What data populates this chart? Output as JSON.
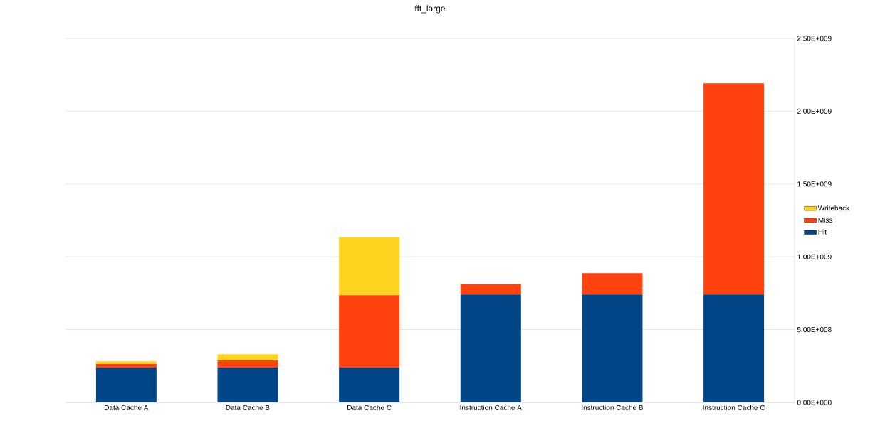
{
  "chart_data": {
    "type": "bar",
    "title": "fft_large",
    "stacked": true,
    "categories": [
      "Data Cache A",
      "Data Cache B",
      "Data Cache C",
      "Instruction Cache A",
      "Instruction Cache B",
      "Instruction Cache C"
    ],
    "series": [
      {
        "name": "Hit",
        "color": "#004586",
        "values": [
          239000000,
          239000000,
          239000000,
          741000000,
          741000000,
          741000000
        ]
      },
      {
        "name": "Miss",
        "color": "#ff420e",
        "values": [
          25000000,
          49000000,
          497000000,
          71000000,
          146000000,
          1450000000
        ]
      },
      {
        "name": "Writeback",
        "color": "#ffd320",
        "values": [
          18000000,
          43000000,
          399000000,
          0,
          0,
          0
        ]
      }
    ],
    "ylim": [
      0,
      2500000000
    ],
    "yticks": [
      {
        "value": 0,
        "label": "0.00E+000"
      },
      {
        "value": 500000000,
        "label": "5.00E+008"
      },
      {
        "value": 1000000000,
        "label": "1.00E+009"
      },
      {
        "value": 1500000000,
        "label": "1.50E+009"
      },
      {
        "value": 2000000000,
        "label": "2.00E+009"
      },
      {
        "value": 2500000000,
        "label": "2.50E+009"
      }
    ],
    "grid": "y",
    "legend": "right"
  }
}
